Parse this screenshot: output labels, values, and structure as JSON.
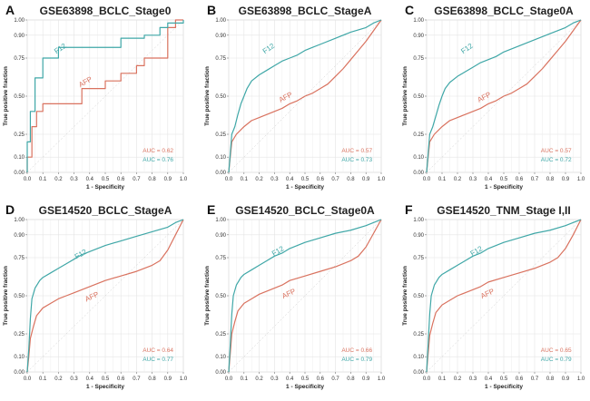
{
  "chart_data": [
    {
      "panel": "A",
      "type": "line",
      "title": "GSE63898_BCLC_Stage0",
      "xlabel": "1 - Specificity",
      "ylabel": "True positive fraction",
      "xlim": [
        0,
        1
      ],
      "ylim": [
        0,
        1
      ],
      "x_ticks": [
        "0.0",
        "0.1",
        "0.2",
        "0.3",
        "0.4",
        "0.5",
        "0.6",
        "0.7",
        "0.8",
        "0.9",
        "1.0"
      ],
      "y_ticks": [
        "0.00",
        "0.10",
        "0.25",
        "0.50",
        "0.75",
        "0.90",
        "1.00"
      ],
      "grid": true,
      "series": [
        {
          "name": "F12",
          "color": "#3fa7a7",
          "auc_label": "AUC = 0.76",
          "x": [
            0,
            0,
            0.02,
            0.02,
            0.05,
            0.05,
            0.1,
            0.1,
            0.2,
            0.2,
            0.45,
            0.45,
            0.6,
            0.6,
            0.75,
            0.75,
            0.85,
            0.85,
            0.9,
            0.9,
            1.0,
            1.0
          ],
          "y": [
            0,
            0.2,
            0.2,
            0.4,
            0.4,
            0.62,
            0.62,
            0.75,
            0.75,
            0.82,
            0.82,
            0.82,
            0.82,
            0.88,
            0.88,
            0.9,
            0.9,
            0.95,
            0.95,
            0.98,
            0.98,
            1.0
          ]
        },
        {
          "name": "AFP",
          "color": "#d9725f",
          "auc_label": "AUC = 0.62",
          "x": [
            0,
            0,
            0.03,
            0.03,
            0.06,
            0.06,
            0.1,
            0.1,
            0.35,
            0.35,
            0.5,
            0.5,
            0.6,
            0.6,
            0.7,
            0.7,
            0.75,
            0.75,
            0.9,
            0.9,
            0.95,
            0.95,
            1.0,
            1.0
          ],
          "y": [
            0,
            0.1,
            0.1,
            0.3,
            0.3,
            0.4,
            0.4,
            0.45,
            0.45,
            0.55,
            0.55,
            0.6,
            0.6,
            0.65,
            0.65,
            0.7,
            0.7,
            0.75,
            0.75,
            0.95,
            0.95,
            1.0,
            1.0,
            1.0
          ]
        }
      ]
    },
    {
      "panel": "B",
      "type": "line",
      "title": "GSE63898_BCLC_StageA",
      "xlabel": "1 - Specificity",
      "ylabel": "True positive fraction",
      "xlim": [
        0,
        1
      ],
      "ylim": [
        0,
        1
      ],
      "x_ticks": [
        "0.0",
        "0.1",
        "0.2",
        "0.3",
        "0.4",
        "0.5",
        "0.6",
        "0.7",
        "0.8",
        "0.9",
        "1.0"
      ],
      "y_ticks": [
        "0.00",
        "0.10",
        "0.25",
        "0.50",
        "0.75",
        "0.90",
        "1.00"
      ],
      "grid": true,
      "series": [
        {
          "name": "F12",
          "color": "#3fa7a7",
          "auc_label": "AUC = 0.73",
          "x": [
            0,
            0.01,
            0.02,
            0.04,
            0.06,
            0.08,
            0.1,
            0.12,
            0.15,
            0.2,
            0.25,
            0.3,
            0.35,
            0.4,
            0.45,
            0.5,
            0.55,
            0.6,
            0.7,
            0.8,
            0.9,
            0.95,
            1.0
          ],
          "y": [
            0,
            0.12,
            0.25,
            0.3,
            0.38,
            0.45,
            0.5,
            0.55,
            0.6,
            0.64,
            0.67,
            0.7,
            0.73,
            0.75,
            0.77,
            0.8,
            0.82,
            0.84,
            0.88,
            0.92,
            0.95,
            0.98,
            1.0
          ]
        },
        {
          "name": "AFP",
          "color": "#d9725f",
          "auc_label": "AUC = 0.57",
          "x": [
            0,
            0.01,
            0.02,
            0.05,
            0.1,
            0.15,
            0.2,
            0.25,
            0.3,
            0.35,
            0.4,
            0.45,
            0.5,
            0.55,
            0.6,
            0.65,
            0.7,
            0.75,
            0.8,
            0.85,
            0.9,
            0.95,
            1.0
          ],
          "y": [
            0,
            0.1,
            0.2,
            0.25,
            0.3,
            0.34,
            0.36,
            0.38,
            0.4,
            0.42,
            0.45,
            0.47,
            0.5,
            0.52,
            0.55,
            0.58,
            0.63,
            0.68,
            0.74,
            0.8,
            0.86,
            0.93,
            1.0
          ]
        }
      ]
    },
    {
      "panel": "C",
      "type": "line",
      "title": "GSE63898_BCLC_Stage0A",
      "xlabel": "1 - Specificity",
      "ylabel": "True positive fraction",
      "xlim": [
        0,
        1
      ],
      "ylim": [
        0,
        1
      ],
      "x_ticks": [
        "0.0",
        "0.1",
        "0.2",
        "0.3",
        "0.4",
        "0.5",
        "0.6",
        "0.7",
        "0.8",
        "0.9",
        "1.0"
      ],
      "y_ticks": [
        "0.00",
        "0.10",
        "0.25",
        "0.50",
        "0.75",
        "0.90",
        "1.00"
      ],
      "grid": true,
      "series": [
        {
          "name": "F12",
          "color": "#3fa7a7",
          "auc_label": "AUC = 0.72",
          "x": [
            0,
            0.01,
            0.02,
            0.04,
            0.06,
            0.08,
            0.1,
            0.12,
            0.15,
            0.2,
            0.25,
            0.3,
            0.35,
            0.4,
            0.45,
            0.5,
            0.55,
            0.6,
            0.7,
            0.8,
            0.9,
            0.95,
            1.0
          ],
          "y": [
            0,
            0.12,
            0.25,
            0.3,
            0.37,
            0.44,
            0.5,
            0.55,
            0.59,
            0.63,
            0.66,
            0.69,
            0.72,
            0.74,
            0.76,
            0.79,
            0.81,
            0.83,
            0.87,
            0.91,
            0.95,
            0.98,
            1.0
          ]
        },
        {
          "name": "AFP",
          "color": "#d9725f",
          "auc_label": "AUC = 0.57",
          "x": [
            0,
            0.01,
            0.02,
            0.05,
            0.1,
            0.15,
            0.2,
            0.25,
            0.3,
            0.35,
            0.4,
            0.45,
            0.5,
            0.55,
            0.6,
            0.65,
            0.7,
            0.75,
            0.8,
            0.85,
            0.9,
            0.95,
            1.0
          ],
          "y": [
            0,
            0.1,
            0.2,
            0.25,
            0.3,
            0.34,
            0.36,
            0.38,
            0.4,
            0.42,
            0.45,
            0.47,
            0.5,
            0.52,
            0.55,
            0.58,
            0.63,
            0.68,
            0.74,
            0.8,
            0.86,
            0.93,
            1.0
          ]
        }
      ]
    },
    {
      "panel": "D",
      "type": "line",
      "title": "GSE14520_BCLC_StageA",
      "xlabel": "1 - Specificity",
      "ylabel": "True positive fraction",
      "xlim": [
        0,
        1
      ],
      "ylim": [
        0,
        1
      ],
      "x_ticks": [
        "0.0",
        "0.1",
        "0.2",
        "0.3",
        "0.4",
        "0.5",
        "0.6",
        "0.7",
        "0.8",
        "0.9",
        "1.0"
      ],
      "y_ticks": [
        "0.00",
        "0.10",
        "0.25",
        "0.50",
        "0.75",
        "0.90",
        "1.00"
      ],
      "grid": true,
      "series": [
        {
          "name": "F12",
          "color": "#3fa7a7",
          "auc_label": "AUC = 0.77",
          "x": [
            0,
            0.01,
            0.02,
            0.03,
            0.05,
            0.08,
            0.1,
            0.15,
            0.2,
            0.25,
            0.3,
            0.35,
            0.4,
            0.5,
            0.6,
            0.7,
            0.8,
            0.9,
            0.95,
            1.0
          ],
          "y": [
            0,
            0.15,
            0.35,
            0.48,
            0.55,
            0.6,
            0.62,
            0.65,
            0.68,
            0.71,
            0.74,
            0.77,
            0.79,
            0.83,
            0.86,
            0.89,
            0.92,
            0.95,
            0.98,
            1.0
          ]
        },
        {
          "name": "AFP",
          "color": "#d9725f",
          "auc_label": "AUC = 0.64",
          "x": [
            0,
            0.01,
            0.02,
            0.04,
            0.06,
            0.1,
            0.15,
            0.2,
            0.25,
            0.3,
            0.35,
            0.4,
            0.5,
            0.6,
            0.7,
            0.8,
            0.85,
            0.9,
            0.95,
            1.0
          ],
          "y": [
            0,
            0.1,
            0.22,
            0.3,
            0.37,
            0.42,
            0.45,
            0.48,
            0.5,
            0.52,
            0.54,
            0.56,
            0.6,
            0.63,
            0.66,
            0.7,
            0.73,
            0.8,
            0.9,
            1.0
          ]
        }
      ]
    },
    {
      "panel": "E",
      "type": "line",
      "title": "GSE14520_BCLC_Stage0A",
      "xlabel": "1 - Specificity",
      "ylabel": "True positive fraction",
      "xlim": [
        0,
        1
      ],
      "ylim": [
        0,
        1
      ],
      "x_ticks": [
        "0.0",
        "0.1",
        "0.2",
        "0.3",
        "0.4",
        "0.5",
        "0.6",
        "0.7",
        "0.8",
        "0.9",
        "1.0"
      ],
      "y_ticks": [
        "0.00",
        "0.10",
        "0.25",
        "0.50",
        "0.75",
        "0.90",
        "1.00"
      ],
      "grid": true,
      "series": [
        {
          "name": "F12",
          "color": "#3fa7a7",
          "auc_label": "AUC = 0.79",
          "x": [
            0,
            0.01,
            0.02,
            0.03,
            0.05,
            0.08,
            0.1,
            0.15,
            0.2,
            0.25,
            0.3,
            0.35,
            0.4,
            0.5,
            0.6,
            0.7,
            0.8,
            0.9,
            0.95,
            1.0
          ],
          "y": [
            0,
            0.18,
            0.38,
            0.5,
            0.57,
            0.62,
            0.64,
            0.67,
            0.7,
            0.73,
            0.76,
            0.78,
            0.81,
            0.85,
            0.88,
            0.91,
            0.93,
            0.96,
            0.98,
            1.0
          ]
        },
        {
          "name": "AFP",
          "color": "#d9725f",
          "auc_label": "AUC = 0.66",
          "x": [
            0,
            0.01,
            0.02,
            0.04,
            0.06,
            0.1,
            0.15,
            0.2,
            0.25,
            0.3,
            0.35,
            0.4,
            0.5,
            0.6,
            0.7,
            0.8,
            0.85,
            0.9,
            0.95,
            1.0
          ],
          "y": [
            0,
            0.12,
            0.25,
            0.33,
            0.4,
            0.45,
            0.48,
            0.51,
            0.53,
            0.55,
            0.57,
            0.6,
            0.63,
            0.66,
            0.69,
            0.73,
            0.76,
            0.82,
            0.91,
            1.0
          ]
        }
      ]
    },
    {
      "panel": "F",
      "type": "line",
      "title": "GSE14520_TNM_Stage I,II",
      "xlabel": "1 - Specificity",
      "ylabel": "True positive fraction",
      "xlim": [
        0,
        1
      ],
      "ylim": [
        0,
        1
      ],
      "x_ticks": [
        "0.0",
        "0.1",
        "0.2",
        "0.3",
        "0.4",
        "0.5",
        "0.6",
        "0.7",
        "0.8",
        "0.9",
        "1.0"
      ],
      "y_ticks": [
        "0.00",
        "0.10",
        "0.25",
        "0.50",
        "0.75",
        "0.90",
        "1.00"
      ],
      "grid": true,
      "series": [
        {
          "name": "F12",
          "color": "#3fa7a7",
          "auc_label": "AUC = 0.79",
          "x": [
            0,
            0.01,
            0.02,
            0.03,
            0.05,
            0.08,
            0.1,
            0.15,
            0.2,
            0.25,
            0.3,
            0.35,
            0.4,
            0.5,
            0.6,
            0.7,
            0.8,
            0.9,
            0.95,
            1.0
          ],
          "y": [
            0,
            0.18,
            0.38,
            0.5,
            0.57,
            0.62,
            0.64,
            0.67,
            0.7,
            0.73,
            0.76,
            0.78,
            0.81,
            0.85,
            0.88,
            0.91,
            0.93,
            0.96,
            0.98,
            1.0
          ]
        },
        {
          "name": "AFP",
          "color": "#d9725f",
          "auc_label": "AUC = 0.65",
          "x": [
            0,
            0.01,
            0.02,
            0.04,
            0.06,
            0.1,
            0.15,
            0.2,
            0.25,
            0.3,
            0.35,
            0.4,
            0.5,
            0.6,
            0.7,
            0.8,
            0.85,
            0.9,
            0.95,
            1.0
          ],
          "y": [
            0,
            0.12,
            0.24,
            0.32,
            0.39,
            0.44,
            0.47,
            0.5,
            0.52,
            0.54,
            0.56,
            0.59,
            0.62,
            0.65,
            0.68,
            0.72,
            0.75,
            0.81,
            0.9,
            1.0
          ]
        }
      ]
    }
  ]
}
